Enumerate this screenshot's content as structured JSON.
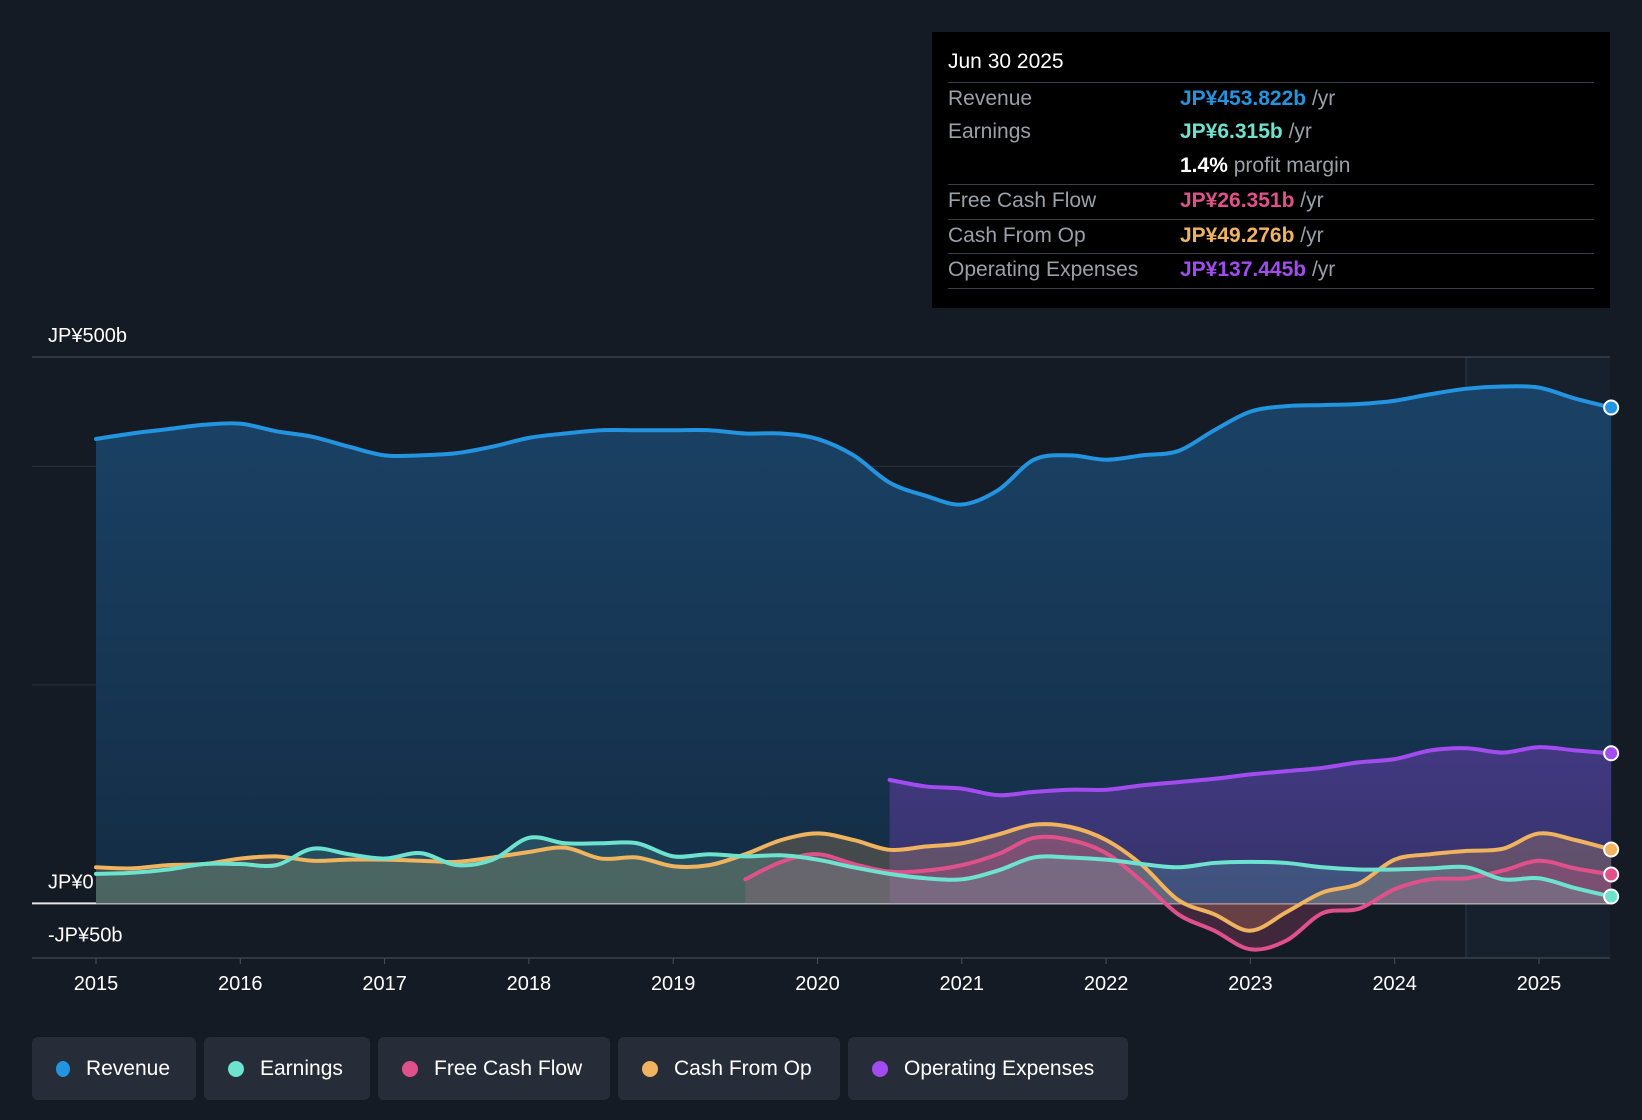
{
  "tooltip": {
    "date": "Jun 30 2025",
    "rows": [
      {
        "label": "Revenue",
        "value": "JP¥453.822b",
        "unit": "/yr",
        "color": "#2394df"
      },
      {
        "label": "Earnings",
        "value": "JP¥6.315b",
        "unit": "/yr",
        "color": "#6de2cf"
      },
      {
        "label": "",
        "value": "1.4%",
        "unit": "profit margin",
        "color": "#ffffff"
      },
      {
        "label": "Free Cash Flow",
        "value": "JP¥26.351b",
        "unit": "/yr",
        "color": "#e0518b"
      },
      {
        "label": "Cash From Op",
        "value": "JP¥49.276b",
        "unit": "/yr",
        "color": "#f0b35e"
      },
      {
        "label": "Operating Expenses",
        "value": "JP¥137.445b",
        "unit": "/yr",
        "color": "#a24cf0"
      }
    ]
  },
  "legend": [
    {
      "label": "Revenue",
      "color": "#2394df"
    },
    {
      "label": "Earnings",
      "color": "#6de2cf"
    },
    {
      "label": "Free Cash Flow",
      "color": "#e0518b"
    },
    {
      "label": "Cash From Op",
      "color": "#f0b35e"
    },
    {
      "label": "Operating Expenses",
      "color": "#a24cf0"
    }
  ],
  "chart_data": {
    "type": "line",
    "title": "",
    "xlabel": "",
    "ylabel": "",
    "xlim": [
      2014.55,
      2025.5
    ],
    "ylim": [
      -50,
      500
    ],
    "y_labels": [
      {
        "value": 500,
        "text": "JP¥500b"
      },
      {
        "value": 0,
        "text": "JP¥0"
      },
      {
        "value": -50,
        "text": "-JP¥50b"
      }
    ],
    "x_ticks": [
      2015,
      2016,
      2017,
      2018,
      2019,
      2020,
      2021,
      2022,
      2023,
      2024,
      2025
    ],
    "series": [
      {
        "name": "Revenue",
        "color": "#2394df",
        "points": [
          [
            2015,
            425
          ],
          [
            2015.25,
            430
          ],
          [
            2015.5,
            434
          ],
          [
            2015.75,
            438
          ],
          [
            2016,
            439
          ],
          [
            2016.25,
            432
          ],
          [
            2016.5,
            427
          ],
          [
            2016.75,
            418
          ],
          [
            2017,
            410
          ],
          [
            2017.25,
            410
          ],
          [
            2017.5,
            412
          ],
          [
            2017.75,
            418
          ],
          [
            2018,
            426
          ],
          [
            2018.25,
            430
          ],
          [
            2018.5,
            433
          ],
          [
            2018.75,
            433
          ],
          [
            2019,
            433
          ],
          [
            2019.25,
            433
          ],
          [
            2019.5,
            430
          ],
          [
            2019.75,
            430
          ],
          [
            2020,
            425
          ],
          [
            2020.25,
            410
          ],
          [
            2020.5,
            385
          ],
          [
            2020.75,
            373
          ],
          [
            2021,
            365
          ],
          [
            2021.25,
            378
          ],
          [
            2021.5,
            406
          ],
          [
            2021.75,
            410
          ],
          [
            2022,
            406
          ],
          [
            2022.25,
            410
          ],
          [
            2022.5,
            414
          ],
          [
            2022.75,
            433
          ],
          [
            2023,
            450
          ],
          [
            2023.25,
            455
          ],
          [
            2023.5,
            456
          ],
          [
            2023.75,
            457
          ],
          [
            2024,
            460
          ],
          [
            2024.25,
            466
          ],
          [
            2024.5,
            471
          ],
          [
            2024.75,
            473
          ],
          [
            2025,
            472
          ],
          [
            2025.25,
            462
          ],
          [
            2025.5,
            453.8
          ]
        ]
      },
      {
        "name": "Operating Expenses",
        "color": "#a24cf0",
        "points": [
          [
            2020.5,
            113
          ],
          [
            2020.75,
            107
          ],
          [
            2021,
            105
          ],
          [
            2021.25,
            99
          ],
          [
            2021.5,
            102
          ],
          [
            2021.75,
            104
          ],
          [
            2022,
            104
          ],
          [
            2022.25,
            108
          ],
          [
            2022.5,
            111
          ],
          [
            2022.75,
            114
          ],
          [
            2023,
            118
          ],
          [
            2023.25,
            121
          ],
          [
            2023.5,
            124
          ],
          [
            2023.75,
            129
          ],
          [
            2024,
            132
          ],
          [
            2024.25,
            140
          ],
          [
            2024.5,
            142
          ],
          [
            2024.75,
            138
          ],
          [
            2025,
            143
          ],
          [
            2025.25,
            140
          ],
          [
            2025.5,
            137.4
          ]
        ]
      },
      {
        "name": "Cash From Op",
        "color": "#f0b35e",
        "points": [
          [
            2015,
            33
          ],
          [
            2015.25,
            32
          ],
          [
            2015.5,
            35
          ],
          [
            2015.75,
            36
          ],
          [
            2016,
            41
          ],
          [
            2016.25,
            43
          ],
          [
            2016.5,
            39
          ],
          [
            2016.75,
            40
          ],
          [
            2017,
            40
          ],
          [
            2017.25,
            39
          ],
          [
            2017.5,
            38
          ],
          [
            2017.75,
            42
          ],
          [
            2018,
            47
          ],
          [
            2018.25,
            51
          ],
          [
            2018.5,
            41
          ],
          [
            2018.75,
            42
          ],
          [
            2019,
            34
          ],
          [
            2019.25,
            35
          ],
          [
            2019.5,
            45
          ],
          [
            2019.75,
            58
          ],
          [
            2020,
            64
          ],
          [
            2020.25,
            58
          ],
          [
            2020.5,
            49
          ],
          [
            2020.75,
            52
          ],
          [
            2021,
            55
          ],
          [
            2021.25,
            63
          ],
          [
            2021.5,
            72
          ],
          [
            2021.75,
            70
          ],
          [
            2022,
            58
          ],
          [
            2022.25,
            35
          ],
          [
            2022.5,
            3
          ],
          [
            2022.75,
            -10
          ],
          [
            2023,
            -25
          ],
          [
            2023.25,
            -8
          ],
          [
            2023.5,
            10
          ],
          [
            2023.75,
            18
          ],
          [
            2024,
            40
          ],
          [
            2024.25,
            45
          ],
          [
            2024.5,
            48
          ],
          [
            2024.75,
            50
          ],
          [
            2025,
            64
          ],
          [
            2025.25,
            58
          ],
          [
            2025.5,
            49.3
          ]
        ]
      },
      {
        "name": "Free Cash Flow",
        "color": "#e0518b",
        "points": [
          [
            2019.5,
            22
          ],
          [
            2019.75,
            38
          ],
          [
            2020,
            45
          ],
          [
            2020.25,
            36
          ],
          [
            2020.5,
            29
          ],
          [
            2020.75,
            30
          ],
          [
            2021,
            35
          ],
          [
            2021.25,
            45
          ],
          [
            2021.5,
            60
          ],
          [
            2021.75,
            58
          ],
          [
            2022,
            46
          ],
          [
            2022.25,
            20
          ],
          [
            2022.5,
            -10
          ],
          [
            2022.75,
            -25
          ],
          [
            2023,
            -42
          ],
          [
            2023.25,
            -34
          ],
          [
            2023.5,
            -9
          ],
          [
            2023.75,
            -5
          ],
          [
            2024,
            13
          ],
          [
            2024.25,
            22
          ],
          [
            2024.5,
            23
          ],
          [
            2024.75,
            30
          ],
          [
            2025,
            39
          ],
          [
            2025.25,
            32
          ],
          [
            2025.5,
            26.4
          ]
        ]
      },
      {
        "name": "Earnings",
        "color": "#6de2cf",
        "points": [
          [
            2015,
            27
          ],
          [
            2015.25,
            28
          ],
          [
            2015.5,
            31
          ],
          [
            2015.75,
            36
          ],
          [
            2016,
            36
          ],
          [
            2016.25,
            35
          ],
          [
            2016.5,
            50
          ],
          [
            2016.75,
            45
          ],
          [
            2017,
            41
          ],
          [
            2017.25,
            46
          ],
          [
            2017.5,
            35
          ],
          [
            2017.75,
            40
          ],
          [
            2018,
            60
          ],
          [
            2018.25,
            55
          ],
          [
            2018.5,
            55
          ],
          [
            2018.75,
            55
          ],
          [
            2019,
            43
          ],
          [
            2019.25,
            45
          ],
          [
            2019.5,
            43
          ],
          [
            2019.75,
            44
          ],
          [
            2020,
            40
          ],
          [
            2020.25,
            33
          ],
          [
            2020.5,
            27
          ],
          [
            2020.75,
            23
          ],
          [
            2021,
            22
          ],
          [
            2021.25,
            30
          ],
          [
            2021.5,
            42
          ],
          [
            2021.75,
            42
          ],
          [
            2022,
            40
          ],
          [
            2022.25,
            36
          ],
          [
            2022.5,
            33
          ],
          [
            2022.75,
            37
          ],
          [
            2023,
            38
          ],
          [
            2023.25,
            37
          ],
          [
            2023.5,
            33
          ],
          [
            2023.75,
            31
          ],
          [
            2024,
            31
          ],
          [
            2024.25,
            32
          ],
          [
            2024.5,
            33
          ],
          [
            2024.75,
            22
          ],
          [
            2025,
            23
          ],
          [
            2025.25,
            14
          ],
          [
            2025.5,
            6.3
          ]
        ]
      }
    ]
  }
}
